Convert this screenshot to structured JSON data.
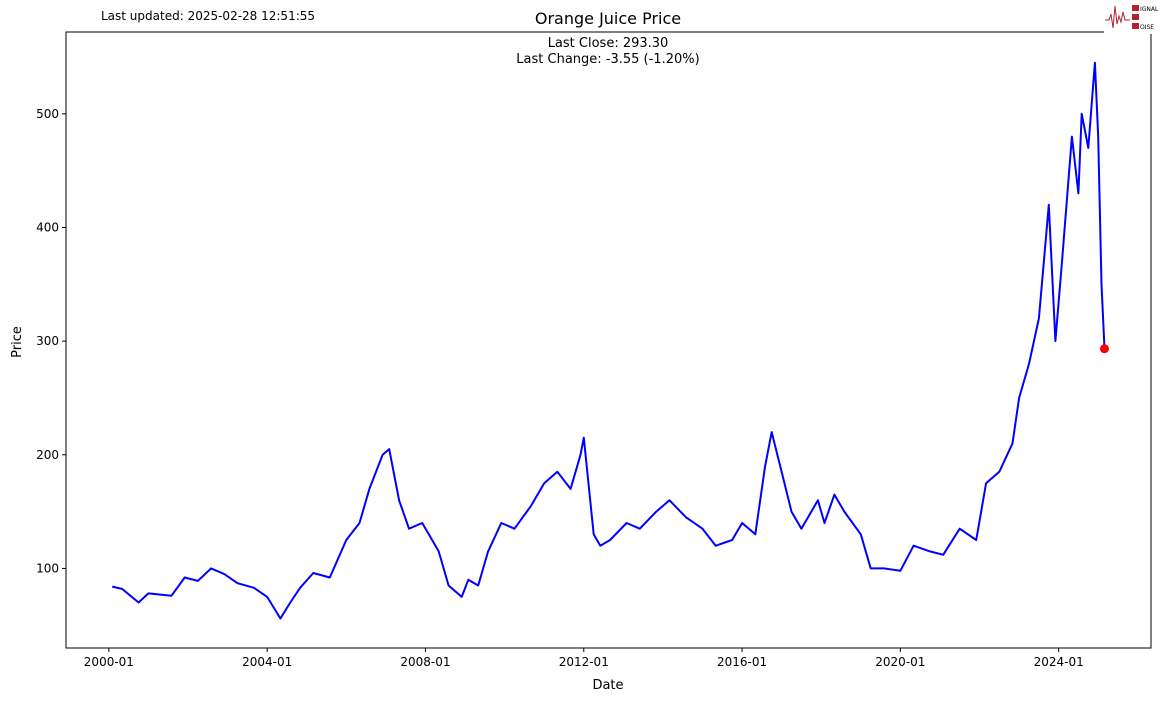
{
  "header": {
    "last_updated": "Last updated: 2025-02-28 12:51:55"
  },
  "logo": {
    "text": "SIGNAL 2 NOISE"
  },
  "chart_data": {
    "type": "line",
    "title": "Orange Juice Price",
    "annotation_lines": [
      "Last Close: 293.30",
      "Last Change: -3.55 (-1.20%)"
    ],
    "xlabel": "Date",
    "ylabel": "Price",
    "xlim": [
      "1998-12",
      "2026-05"
    ],
    "ylim": [
      30,
      572
    ],
    "x_ticks": [
      "2000-01",
      "2004-01",
      "2008-01",
      "2012-01",
      "2016-01",
      "2020-01",
      "2024-01"
    ],
    "y_ticks": [
      100,
      200,
      300,
      400,
      500
    ],
    "grid": false,
    "line_color": "#0000ff",
    "marker_color": "#ff0000",
    "last_point": {
      "date": "2025-02-28",
      "value": 293.3
    },
    "series": [
      {
        "dates": [
          "2000-02",
          "2000-05",
          "2000-10",
          "2001-01",
          "2001-08",
          "2001-12",
          "2002-04",
          "2002-08",
          "2002-12",
          "2003-04",
          "2003-09",
          "2004-01",
          "2004-05",
          "2004-08",
          "2004-11",
          "2005-03",
          "2005-08",
          "2006-01",
          "2006-05",
          "2006-08",
          "2006-12",
          "2007-02",
          "2007-05",
          "2007-08",
          "2007-12",
          "2008-02",
          "2008-05",
          "2008-08",
          "2008-12",
          "2009-02",
          "2009-05",
          "2009-08",
          "2009-12",
          "2010-04",
          "2010-09",
          "2011-01",
          "2011-05",
          "2011-09",
          "2011-12",
          "2012-01",
          "2012-04",
          "2012-06",
          "2012-09",
          "2013-02",
          "2013-06",
          "2013-11",
          "2014-03",
          "2014-08",
          "2015-01",
          "2015-05",
          "2015-10",
          "2016-01",
          "2016-05",
          "2016-08",
          "2016-10",
          "2017-01",
          "2017-04",
          "2017-07",
          "2017-12",
          "2018-02",
          "2018-05",
          "2018-08",
          "2019-01",
          "2019-04",
          "2019-08",
          "2020-01",
          "2020-05",
          "2020-10",
          "2021-02",
          "2021-07",
          "2021-12",
          "2022-03",
          "2022-07",
          "2022-11",
          "2023-01",
          "2023-04",
          "2023-07",
          "2023-10",
          "2023-12",
          "2024-02",
          "2024-05",
          "2024-07",
          "2024-08",
          "2024-10",
          "2024-12",
          "2025-01",
          "2025-02",
          "2025-02-28"
        ],
        "values": [
          84,
          82,
          70,
          78,
          76,
          92,
          89,
          100,
          95,
          87,
          83,
          75,
          56,
          70,
          83,
          96,
          92,
          125,
          140,
          170,
          200,
          205,
          160,
          135,
          140,
          130,
          115,
          85,
          75,
          90,
          85,
          115,
          140,
          135,
          155,
          175,
          185,
          170,
          200,
          215,
          130,
          120,
          125,
          140,
          135,
          150,
          160,
          145,
          135,
          120,
          125,
          140,
          130,
          190,
          220,
          185,
          150,
          135,
          160,
          140,
          165,
          150,
          130,
          100,
          100,
          98,
          120,
          115,
          112,
          135,
          125,
          175,
          185,
          210,
          250,
          280,
          320,
          420,
          300,
          370,
          480,
          430,
          500,
          470,
          545,
          480,
          350,
          293.3
        ]
      }
    ]
  }
}
